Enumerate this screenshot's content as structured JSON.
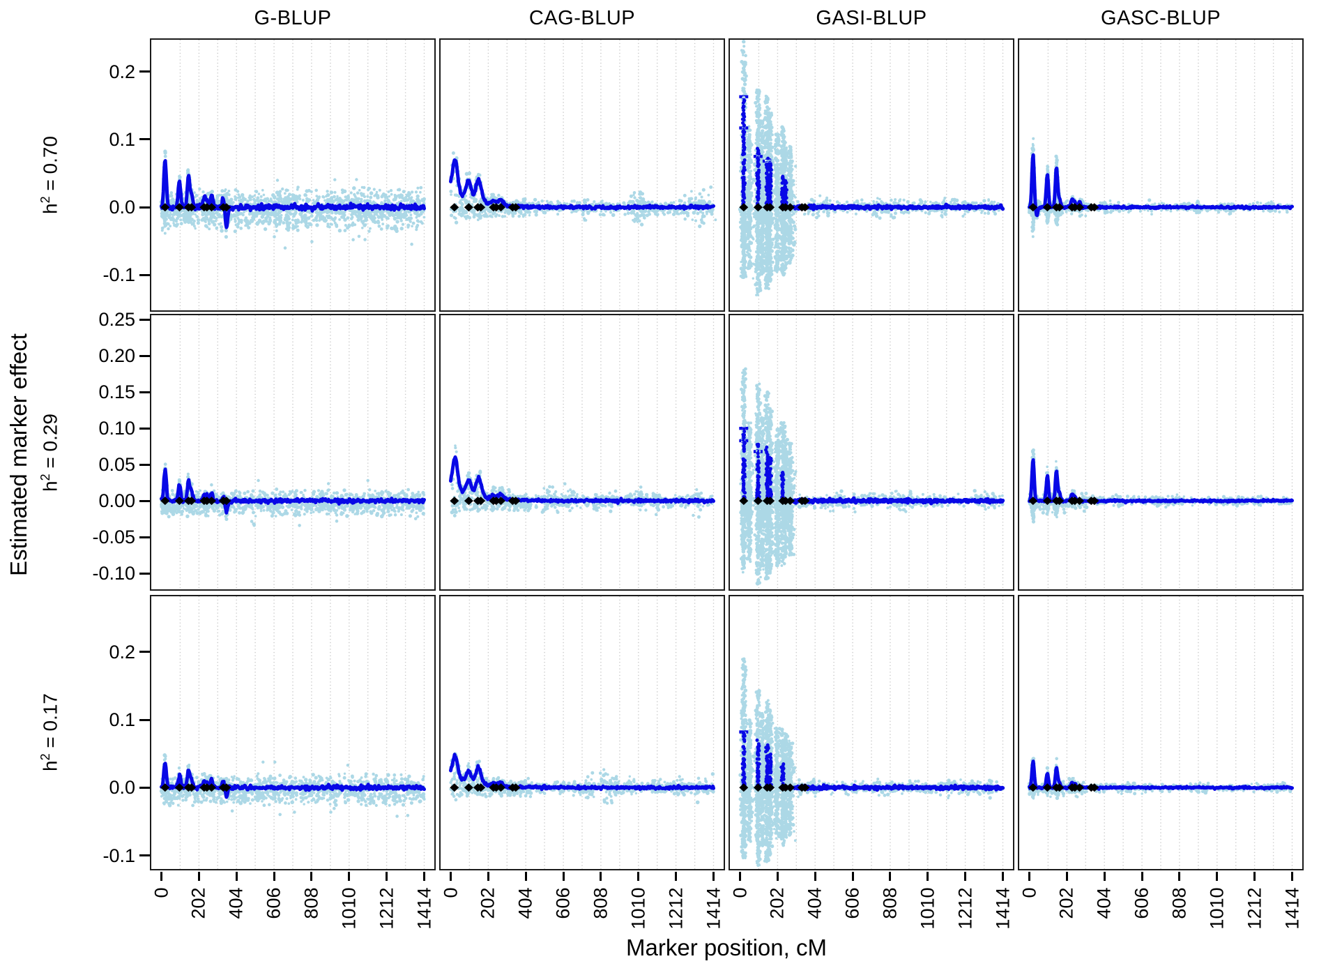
{
  "figure": {
    "ylabel": "Estimated marker effect",
    "xlabel": "Marker position, cM",
    "columns": [
      "G-BLUP",
      "CAG-BLUP",
      "GASI-BLUP",
      "GASC-BLUP"
    ],
    "rows": [
      {
        "prefix": "h",
        "sup": "2",
        "rest": " = 0.70"
      },
      {
        "prefix": "h",
        "sup": "2",
        "rest": " = 0.29"
      },
      {
        "prefix": "h",
        "sup": "2",
        "rest": " = 0.17"
      }
    ]
  },
  "chart_data": {
    "type": "scatter",
    "xlabel": "Marker position, cM",
    "ylabel": "Estimated marker effect",
    "x_axis": {
      "range": [
        0,
        1414
      ],
      "ticks": [
        0,
        202,
        404,
        606,
        808,
        1010,
        1212,
        1414
      ],
      "tick_labels": [
        "0",
        "202",
        "404",
        "606",
        "808",
        "1010",
        "1212",
        "1414"
      ],
      "gridline_interval_cM": 101,
      "grid": "vertical-dotted"
    },
    "qtl_positions_cM": [
      20,
      97,
      146,
      162,
      230,
      245,
      270,
      333,
      350
    ],
    "colors": {
      "scatter": "#ACD8E6",
      "mean_line": "#0808E6",
      "qtl_marker": "#000000",
      "gridline": "#C8C8C8",
      "border": "#1B1B1B",
      "background": "#FFFFFF"
    },
    "rows": [
      {
        "heritability": 0.7,
        "ylim": [
          -0.154,
          0.249
        ],
        "ytick_values": [
          0.2,
          0.1,
          0.0,
          -0.1
        ],
        "ytick_labels": [
          "0.2",
          "0.1",
          "0.0",
          "-0.1"
        ],
        "panels": [
          {
            "method": "G-BLUP",
            "style": "band",
            "sigma": 6.5,
            "band": 0.029,
            "n": 1400,
            "outlier_depth": 0.062,
            "line_noise": 0.002,
            "peaks": [
              [
                20,
                0.071
              ],
              [
                97,
                0.038
              ],
              [
                146,
                0.046
              ],
              [
                162,
                0.02
              ],
              [
                230,
                0.013
              ],
              [
                245,
                0.01
              ],
              [
                270,
                0.018
              ],
              [
                333,
                0.012
              ],
              [
                350,
                -0.03
              ]
            ]
          },
          {
            "method": "CAG-BLUP",
            "style": "taper",
            "sigma": 13,
            "start": 0.03,
            "hug": 0.005,
            "early": 430,
            "tail": 0.006,
            "line_noise": 0.0012,
            "peaks": [
              [
                24,
                0.046
              ],
              [
                97,
                0.028
              ],
              [
                146,
                0.027
              ],
              [
                162,
                0.012
              ],
              [
                230,
                0.006
              ],
              [
                270,
                0.009
              ]
            ]
          },
          {
            "method": "GASI-BLUP",
            "style": "columns",
            "cloud_to": 300,
            "flat_from": 290,
            "fill": 0.038,
            "tail": 0.005,
            "light_columns": [
              [
                20,
                0.245,
                -0.105
              ],
              [
                50,
                0.12,
                -0.09
              ],
              [
                97,
                0.175,
                -0.13
              ],
              [
                120,
                0.13,
                -0.1
              ],
              [
                146,
                0.165,
                -0.12
              ],
              [
                162,
                0.14,
                -0.11
              ],
              [
                200,
                0.11,
                -0.095
              ],
              [
                230,
                0.12,
                -0.1
              ],
              [
                245,
                0.1,
                -0.09
              ],
              [
                270,
                0.09,
                -0.085
              ]
            ],
            "dark_columns": [
              [
                20,
                0.163
              ],
              [
                97,
                0.088
              ],
              [
                146,
                0.075
              ],
              [
                162,
                0.07
              ],
              [
                230,
                0.05
              ],
              [
                245,
                0.04
              ]
            ],
            "dashes": [
              [
                20,
                0.163
              ],
              [
                20,
                0.117
              ],
              [
                97,
                0.075
              ],
              [
                146,
                0.068
              ]
            ]
          },
          {
            "method": "GASC-BLUP",
            "style": "spikes",
            "sigma": 6,
            "tail": 0.0035,
            "line_noise": 0.0008,
            "peaks": [
              [
                20,
                0.078
              ],
              [
                40,
                -0.012
              ],
              [
                97,
                0.048
              ],
              [
                146,
                0.058
              ],
              [
                162,
                0.012
              ],
              [
                230,
                0.012
              ],
              [
                245,
                0.008
              ],
              [
                270,
                0.008
              ]
            ]
          }
        ]
      },
      {
        "heritability": 0.29,
        "ylim": [
          -0.124,
          0.258
        ],
        "ytick_values": [
          0.25,
          0.2,
          0.15,
          0.1,
          0.05,
          0.0,
          -0.05,
          -0.1
        ],
        "ytick_labels": [
          "0.25",
          "0.20",
          "0.15",
          "0.10",
          "0.05",
          "0.00",
          "-0.05",
          "-0.10"
        ],
        "panels": [
          {
            "method": "G-BLUP",
            "style": "band",
            "sigma": 6.5,
            "band": 0.017,
            "n": 1150,
            "outlier_depth": 0.04,
            "line_noise": 0.0013,
            "peaks": [
              [
                20,
                0.044
              ],
              [
                97,
                0.023
              ],
              [
                146,
                0.028
              ],
              [
                162,
                0.013
              ],
              [
                230,
                0.008
              ],
              [
                245,
                0.007
              ],
              [
                270,
                0.011
              ],
              [
                333,
                0.007
              ],
              [
                350,
                -0.016
              ]
            ]
          },
          {
            "method": "CAG-BLUP",
            "style": "taper",
            "sigma": 13,
            "start": 0.022,
            "hug": 0.0045,
            "early": 430,
            "tail": 0.005,
            "line_noise": 0.001,
            "peaks": [
              [
                24,
                0.042
              ],
              [
                97,
                0.02
              ],
              [
                146,
                0.021
              ],
              [
                162,
                0.009
              ],
              [
                230,
                0.005
              ],
              [
                270,
                0.007
              ]
            ]
          },
          {
            "method": "GASI-BLUP",
            "style": "columns",
            "cloud_to": 300,
            "flat_from": 290,
            "fill": 0.033,
            "tail": 0.0045,
            "light_columns": [
              [
                20,
                0.19,
                -0.1
              ],
              [
                50,
                0.11,
                -0.085
              ],
              [
                97,
                0.165,
                -0.115
              ],
              [
                120,
                0.12,
                -0.095
              ],
              [
                146,
                0.15,
                -0.11
              ],
              [
                162,
                0.13,
                -0.1
              ],
              [
                200,
                0.1,
                -0.09
              ],
              [
                230,
                0.11,
                -0.09
              ],
              [
                245,
                0.09,
                -0.08
              ],
              [
                270,
                0.08,
                -0.075
              ]
            ],
            "dark_columns": [
              [
                20,
                0.1
              ],
              [
                97,
                0.078
              ],
              [
                146,
                0.075
              ],
              [
                162,
                0.06
              ],
              [
                230,
                0.04
              ]
            ],
            "dashes": [
              [
                20,
                0.1
              ],
              [
                20,
                0.083
              ],
              [
                97,
                0.068
              ]
            ]
          },
          {
            "method": "GASC-BLUP",
            "style": "spikes",
            "sigma": 6,
            "tail": 0.003,
            "line_noise": 0.0007,
            "peaks": [
              [
                20,
                0.057
              ],
              [
                97,
                0.034
              ],
              [
                146,
                0.041
              ],
              [
                162,
                0.009
              ],
              [
                230,
                0.009
              ],
              [
                245,
                0.006
              ]
            ]
          }
        ]
      },
      {
        "heritability": 0.17,
        "ylim": [
          -0.122,
          0.284
        ],
        "ytick_values": [
          0.2,
          0.1,
          0.0,
          -0.1
        ],
        "ytick_labels": [
          "0.2",
          "0.1",
          "0.0",
          "-0.1"
        ],
        "panels": [
          {
            "method": "G-BLUP",
            "style": "band",
            "sigma": 6.5,
            "band": 0.021,
            "n": 1200,
            "outlier_depth": 0.045,
            "line_noise": 0.0015,
            "peaks": [
              [
                20,
                0.037
              ],
              [
                97,
                0.019
              ],
              [
                146,
                0.026
              ],
              [
                162,
                0.011
              ],
              [
                230,
                0.009
              ],
              [
                245,
                0.007
              ],
              [
                270,
                0.012
              ],
              [
                333,
                0.007
              ],
              [
                350,
                -0.012
              ]
            ]
          },
          {
            "method": "CAG-BLUP",
            "style": "taper",
            "sigma": 13,
            "start": 0.02,
            "hug": 0.0045,
            "early": 430,
            "tail": 0.0055,
            "line_noise": 0.001,
            "peaks": [
              [
                24,
                0.031
              ],
              [
                97,
                0.016
              ],
              [
                146,
                0.02
              ],
              [
                162,
                0.008
              ],
              [
                230,
                0.004
              ],
              [
                270,
                0.006
              ]
            ]
          },
          {
            "method": "GASI-BLUP",
            "style": "columns",
            "cloud_to": 300,
            "flat_from": 290,
            "fill": 0.032,
            "tail": 0.0045,
            "light_columns": [
              [
                20,
                0.19,
                -0.105
              ],
              [
                50,
                0.1,
                -0.08
              ],
              [
                97,
                0.145,
                -0.115
              ],
              [
                120,
                0.11,
                -0.09
              ],
              [
                146,
                0.13,
                -0.11
              ],
              [
                162,
                0.115,
                -0.1
              ],
              [
                200,
                0.09,
                -0.08
              ],
              [
                230,
                0.09,
                -0.085
              ],
              [
                245,
                0.08,
                -0.075
              ],
              [
                270,
                0.07,
                -0.07
              ]
            ],
            "dark_columns": [
              [
                20,
                0.082
              ],
              [
                97,
                0.07
              ],
              [
                146,
                0.065
              ],
              [
                162,
                0.05
              ],
              [
                230,
                0.035
              ]
            ],
            "dashes": [
              [
                20,
                0.082
              ]
            ]
          },
          {
            "method": "GASC-BLUP",
            "style": "spikes",
            "sigma": 6,
            "tail": 0.003,
            "line_noise": 0.0007,
            "peaks": [
              [
                20,
                0.038
              ],
              [
                97,
                0.021
              ],
              [
                146,
                0.029
              ],
              [
                162,
                0.007
              ],
              [
                230,
                0.007
              ],
              [
                245,
                0.005
              ]
            ]
          }
        ]
      }
    ]
  }
}
